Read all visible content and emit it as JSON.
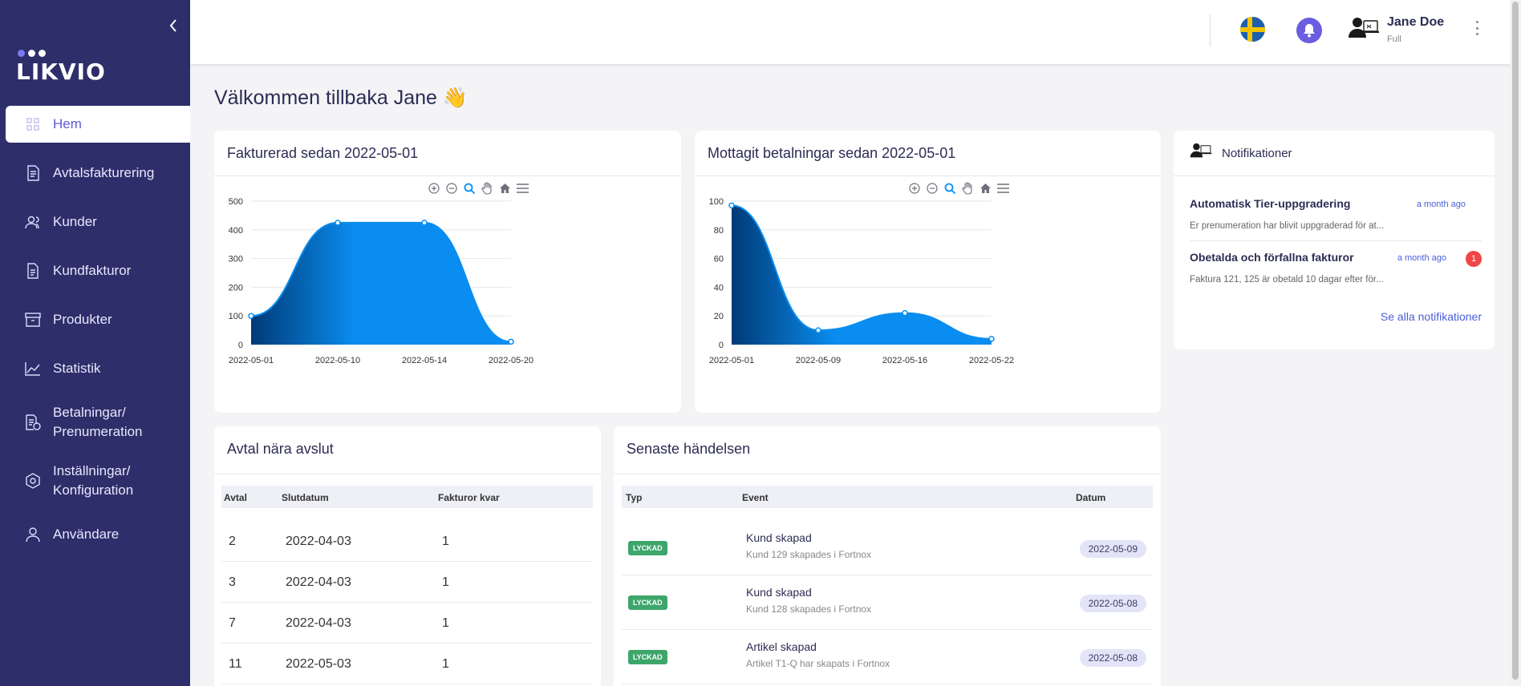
{
  "brand": {
    "name": "LIKVIO"
  },
  "sidebar": {
    "items": [
      {
        "label": "Hem",
        "icon": "grid-icon",
        "active": true
      },
      {
        "label": "Avtalsfakturering",
        "icon": "invoice-icon"
      },
      {
        "label": "Kunder",
        "icon": "users-icon"
      },
      {
        "label": "Kundfakturor",
        "icon": "document-icon"
      },
      {
        "label": "Produkter",
        "icon": "archive-icon"
      },
      {
        "label": "Statistik",
        "icon": "trend-icon"
      },
      {
        "label": "Betalningar/\nPrenumeration",
        "icon": "payment-icon"
      },
      {
        "label": "Inställningar/\nKonfiguration",
        "icon": "settings-icon"
      },
      {
        "label": "Användare",
        "icon": "user-icon"
      }
    ]
  },
  "header": {
    "user_name": "Jane Doe",
    "user_plan": "Full",
    "language_flag": "sweden-flag-icon"
  },
  "welcome": "Välkommen tillbaka Jane 👋",
  "colors": {
    "sidebar": "#2e2e6a",
    "accent": "#5b5bd6",
    "chart_fill": "#0a8df0",
    "success": "#3da66b",
    "badge": "#f04646"
  },
  "charts": {
    "invoiced": {
      "title": "Fakturerad sedan 2022-05-01"
    },
    "payments": {
      "title": "Mottagit betalningar sedan 2022-05-01"
    }
  },
  "chart_data": [
    {
      "type": "area",
      "title": "Fakturerad sedan 2022-05-01",
      "x": [
        "2022-05-01",
        "2022-05-10",
        "2022-05-14",
        "2022-05-20"
      ],
      "values": [
        100,
        425,
        425,
        10
      ],
      "ylim": [
        0,
        500
      ],
      "yticks": [
        0,
        100,
        200,
        300,
        400,
        500
      ],
      "grid": true
    },
    {
      "type": "area",
      "title": "Mottagit betalningar sedan 2022-05-01",
      "x": [
        "2022-05-01",
        "2022-05-09",
        "2022-05-16",
        "2022-05-22"
      ],
      "values": [
        97,
        10,
        22,
        4
      ],
      "ylim": [
        0,
        100
      ],
      "yticks": [
        0,
        20,
        40,
        60,
        80,
        100
      ],
      "grid": true
    }
  ],
  "notifications": {
    "title": "Notifikationer",
    "items": [
      {
        "title": "Automatisk Tier-uppgradering",
        "time": "a month ago",
        "body": "Er prenumeration har blivit uppgraderad för at..."
      },
      {
        "title": "Obetalda och förfallna fakturor",
        "time": "a month ago",
        "body": "Faktura 121, 125 är obetald 10 dagar efter för...",
        "badge": "1"
      }
    ],
    "see_all": "Se alla notifikationer"
  },
  "contracts": {
    "title": "Avtal nära avslut",
    "columns": [
      "Avtal",
      "Slutdatum",
      "Fakturor kvar"
    ],
    "rows": [
      [
        "2",
        "2022-04-03",
        "1"
      ],
      [
        "3",
        "2022-04-03",
        "1"
      ],
      [
        "7",
        "2022-04-03",
        "1"
      ],
      [
        "11",
        "2022-05-03",
        "1"
      ]
    ]
  },
  "events": {
    "title": "Senaste händelsen",
    "columns": [
      "Typ",
      "Event",
      "Datum"
    ],
    "rows": [
      {
        "type": "LYCKAD",
        "title": "Kund skapad",
        "sub": "Kund 129 skapades i Fortnox",
        "date": "2022-05-09"
      },
      {
        "type": "LYCKAD",
        "title": "Kund skapad",
        "sub": "Kund 128 skapades i Fortnox",
        "date": "2022-05-08"
      },
      {
        "type": "LYCKAD",
        "title": "Artikel skapad",
        "sub": "Artikel T1-Q har skapats i Fortnox",
        "date": "2022-05-08"
      }
    ]
  }
}
